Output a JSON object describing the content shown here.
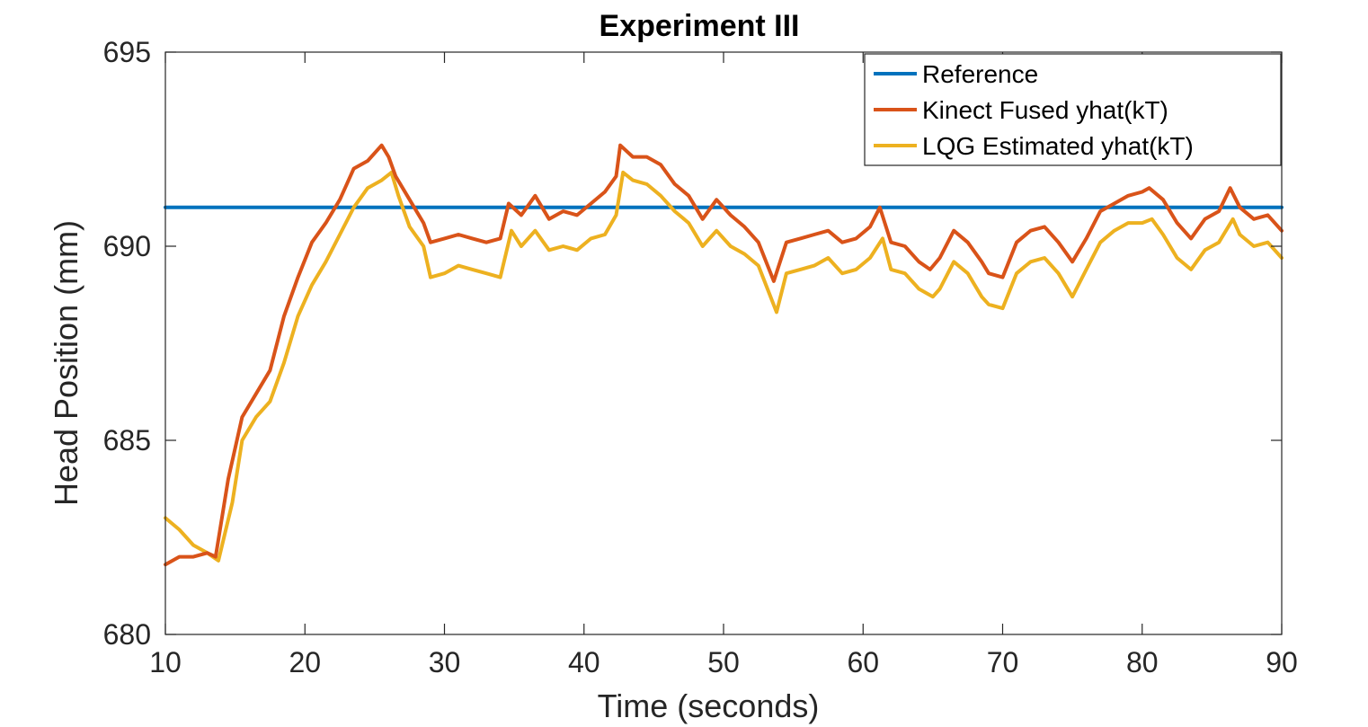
{
  "chart_data": {
    "type": "line",
    "title": "Experiment III",
    "xlabel": "Time (seconds)",
    "ylabel": "Head Position (mm)",
    "xlim": [
      10,
      90
    ],
    "ylim": [
      680,
      695
    ],
    "xticks": [
      10,
      20,
      30,
      40,
      50,
      60,
      70,
      80,
      90
    ],
    "yticks": [
      680,
      685,
      690,
      695
    ],
    "grid": false,
    "legend_position": "top-right",
    "series": [
      {
        "name": "Reference",
        "color": "#0072BD",
        "x": [
          10,
          90
        ],
        "y": [
          691,
          691
        ]
      },
      {
        "name": "Kinect Fused yhat(kT)",
        "color": "#D95319",
        "x": [
          10,
          11,
          12,
          13,
          13.6,
          14.5,
          15.5,
          16.5,
          17.5,
          18.5,
          19.5,
          20.5,
          21.5,
          22.5,
          23.5,
          24.5,
          25.5,
          26.0,
          26.5,
          27.5,
          28.5,
          29.0,
          30.0,
          31.0,
          32.0,
          33.0,
          34.0,
          34.6,
          35.5,
          36.5,
          37.5,
          38.5,
          39.5,
          40.5,
          41.5,
          42.3,
          42.6,
          43.5,
          44.5,
          45.5,
          46.5,
          47.5,
          48.5,
          49.5,
          50.5,
          51.5,
          52.5,
          53.6,
          54.5,
          55.5,
          56.5,
          57.5,
          58.5,
          59.5,
          60.5,
          61.2,
          62.0,
          63.0,
          64.0,
          64.8,
          65.5,
          66.5,
          67.5,
          68.5,
          69.0,
          70.0,
          71.0,
          72.0,
          73.0,
          74.0,
          75.0,
          76.0,
          77.0,
          78.0,
          79.0,
          80.0,
          80.5,
          81.5,
          82.5,
          83.5,
          84.5,
          85.5,
          86.3,
          87.0,
          88.0,
          89.0,
          90.0
        ],
        "y": [
          681.8,
          682.0,
          682.0,
          682.1,
          682.0,
          684.0,
          685.6,
          686.2,
          686.8,
          688.2,
          689.2,
          690.1,
          690.6,
          691.2,
          692.0,
          692.2,
          692.6,
          692.3,
          691.8,
          691.2,
          690.6,
          690.1,
          690.2,
          690.3,
          690.2,
          690.1,
          690.2,
          691.1,
          690.8,
          691.3,
          690.7,
          690.9,
          690.8,
          691.1,
          691.4,
          691.8,
          692.6,
          692.3,
          692.3,
          692.1,
          691.6,
          691.3,
          690.7,
          691.2,
          690.8,
          690.5,
          690.1,
          689.1,
          690.1,
          690.2,
          690.3,
          690.4,
          690.1,
          690.2,
          690.5,
          691.0,
          690.1,
          690.0,
          689.6,
          689.4,
          689.7,
          690.4,
          690.1,
          689.6,
          689.3,
          689.2,
          690.1,
          690.4,
          690.5,
          690.1,
          689.6,
          690.2,
          690.9,
          691.1,
          691.3,
          691.4,
          691.5,
          691.2,
          690.6,
          690.2,
          690.7,
          690.9,
          691.5,
          691.0,
          690.7,
          690.8,
          690.4
        ]
      },
      {
        "name": "LQG Estimated yhat(kT)",
        "color": "#EDB120",
        "x": [
          10,
          11,
          12,
          13,
          13.8,
          14.8,
          15.5,
          16.5,
          17.5,
          18.5,
          19.5,
          20.5,
          21.5,
          22.5,
          23.5,
          24.5,
          25.5,
          26.2,
          26.7,
          27.5,
          28.5,
          29.0,
          30.0,
          31.0,
          32.0,
          33.0,
          34.0,
          34.8,
          35.5,
          36.5,
          37.5,
          38.5,
          39.5,
          40.5,
          41.5,
          42.3,
          42.8,
          43.5,
          44.5,
          45.5,
          46.5,
          47.5,
          48.5,
          49.5,
          50.5,
          51.5,
          52.5,
          53.8,
          54.5,
          55.5,
          56.5,
          57.5,
          58.5,
          59.5,
          60.5,
          61.4,
          62.0,
          63.0,
          64.0,
          65.0,
          65.5,
          66.5,
          67.5,
          68.5,
          69.0,
          70.0,
          71.0,
          72.0,
          73.0,
          74.0,
          75.0,
          76.0,
          77.0,
          78.0,
          79.0,
          80.0,
          80.7,
          81.5,
          82.5,
          83.5,
          84.5,
          85.5,
          86.5,
          87.0,
          88.0,
          89.0,
          90.0
        ],
        "y": [
          683.0,
          682.7,
          682.3,
          682.1,
          681.9,
          683.4,
          685.0,
          685.6,
          686.0,
          687.0,
          688.2,
          689.0,
          689.6,
          690.3,
          691.0,
          691.5,
          691.7,
          691.9,
          691.3,
          690.5,
          690.0,
          689.2,
          689.3,
          689.5,
          689.4,
          689.3,
          689.2,
          690.4,
          690.0,
          690.4,
          689.9,
          690.0,
          689.9,
          690.2,
          690.3,
          690.8,
          691.9,
          691.7,
          691.6,
          691.3,
          690.9,
          690.6,
          690.0,
          690.4,
          690.0,
          689.8,
          689.5,
          688.3,
          689.3,
          689.4,
          689.5,
          689.7,
          689.3,
          689.4,
          689.7,
          690.2,
          689.4,
          689.3,
          688.9,
          688.7,
          688.9,
          689.6,
          689.3,
          688.7,
          688.5,
          688.4,
          689.3,
          689.6,
          689.7,
          689.3,
          688.7,
          689.4,
          690.1,
          690.4,
          690.6,
          690.6,
          690.7,
          690.3,
          689.7,
          689.4,
          689.9,
          690.1,
          690.7,
          690.3,
          690.0,
          690.1,
          689.7
        ]
      }
    ]
  }
}
